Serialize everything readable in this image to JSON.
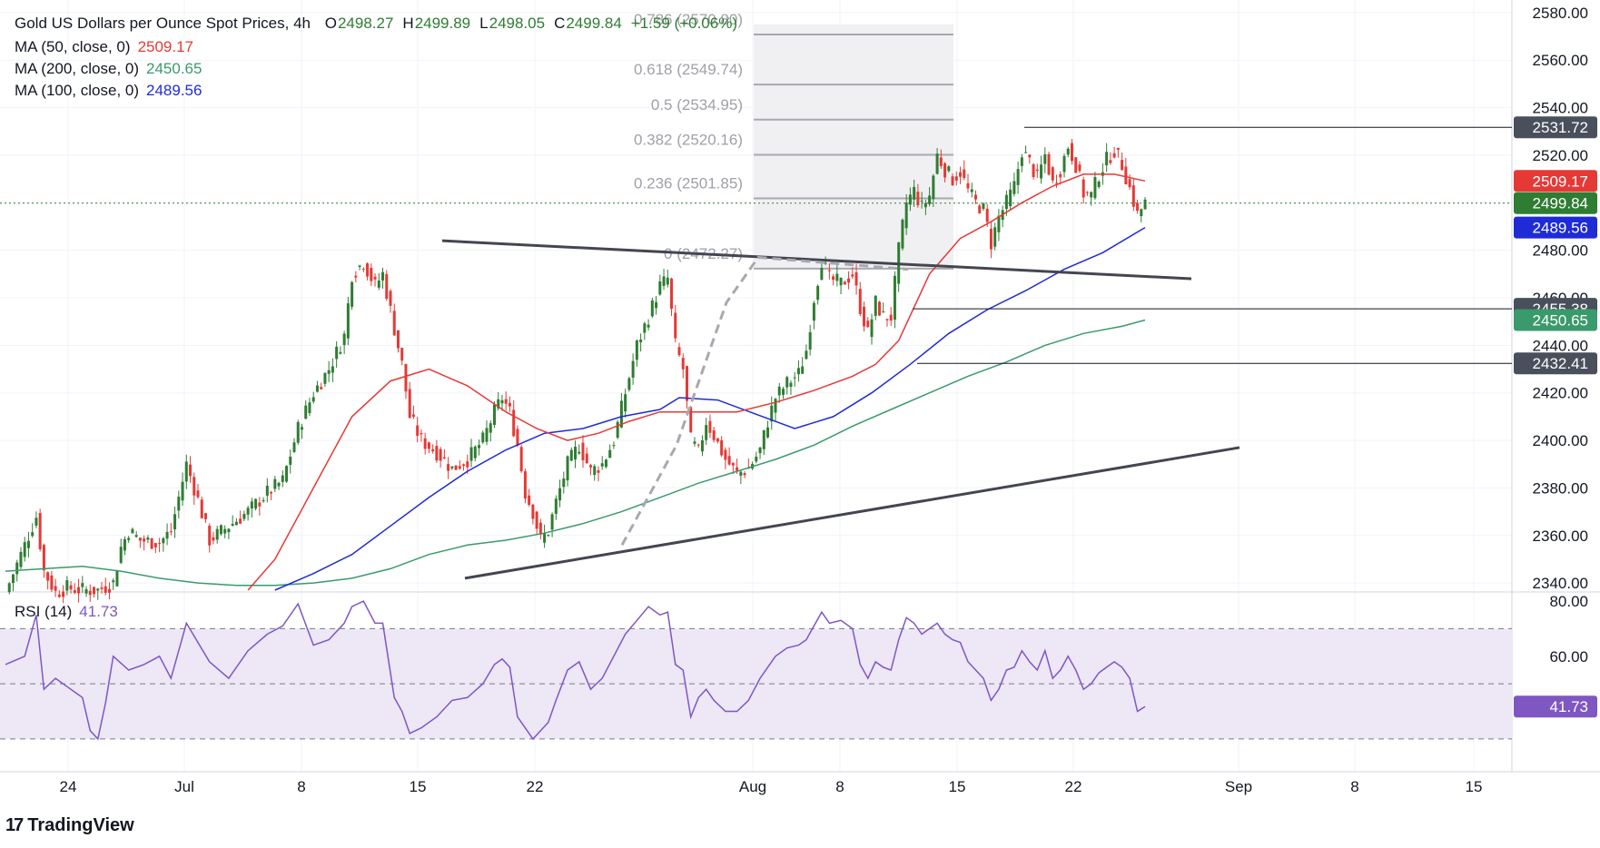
{
  "legend": {
    "symbol": "Gold US Dollars per Ounce Spot Prices, 4h",
    "open_label": "O",
    "open": "2498.27",
    "high_label": "H",
    "high": "2499.89",
    "low_label": "L",
    "low": "2498.05",
    "close_label": "C",
    "close": "2499.84",
    "change": "+1.59 (+0.06%)",
    "ma50_label": "MA (50, close, 0)",
    "ma50_value": "2509.17",
    "ma200_label": "MA (200, close, 0)",
    "ma200_value": "2450.65",
    "ma100_label": "MA (100, close, 0)",
    "ma100_value": "2489.56",
    "rsi_label": "RSI (14)",
    "rsi_value": "41.73"
  },
  "brand": {
    "logo": "17",
    "name": "TradingView"
  },
  "colors": {
    "up": "#2e7d32",
    "down": "#e53935",
    "ma50": "#e53935",
    "ma100": "#1e2bd6",
    "ma200": "#3a9a6b",
    "rsi": "#7e57c2",
    "rsi_band": "#ede7f6"
  },
  "chart_data": {
    "type": "candlestick",
    "title": "Gold US Dollars per Ounce Spot Prices, 4h",
    "y_ticks": [
      "2340.00",
      "2360.00",
      "2380.00",
      "2400.00",
      "2420.00",
      "2440.00",
      "2460.00",
      "2480.00",
      "2500.00",
      "2520.00",
      "2540.00",
      "2560.00",
      "2580.00"
    ],
    "x_ticks": [
      "24",
      "Jul",
      "8",
      "15",
      "22",
      "Aug",
      "8",
      "15",
      "22",
      "Sep",
      "8",
      "15"
    ],
    "ylim": [
      2337,
      2583
    ],
    "price_tags": [
      {
        "value": 2531.72,
        "label": "2531.72",
        "style": "gray"
      },
      {
        "value": 2509.17,
        "label": "2509.17",
        "style": "ma50"
      },
      {
        "value": 2499.84,
        "label": "2499.84",
        "style": "up"
      },
      {
        "value": 2489.56,
        "label": "2489.56",
        "style": "ma100"
      },
      {
        "value": 2455.38,
        "label": "2455.38",
        "style": "gray"
      },
      {
        "value": 2450.65,
        "label": "2450.65",
        "style": "ma200"
      },
      {
        "value": 2432.41,
        "label": "2432.41",
        "style": "gray"
      }
    ],
    "fibonacci": [
      {
        "label": "0.786 (2570.80)",
        "value": 2570.8
      },
      {
        "label": "0.618 (2549.74)",
        "value": 2549.74
      },
      {
        "label": "0.5 (2534.95)",
        "value": 2534.95
      },
      {
        "label": "0.382 (2520.16)",
        "value": 2520.16
      },
      {
        "label": "0.236 (2501.85)",
        "value": 2501.85
      },
      {
        "label": "0 (2472.27)",
        "value": 2472.27
      }
    ],
    "close_path": [
      [
        0,
        2336
      ],
      [
        5,
        2356
      ],
      [
        8,
        2368
      ],
      [
        10,
        2345
      ],
      [
        13,
        2336
      ],
      [
        16,
        2338
      ],
      [
        20,
        2337
      ],
      [
        24,
        2337
      ],
      [
        28,
        2340
      ],
      [
        30,
        2355
      ],
      [
        32,
        2362
      ],
      [
        35,
        2358
      ],
      [
        40,
        2357
      ],
      [
        43,
        2362
      ],
      [
        47,
        2390
      ],
      [
        50,
        2375
      ],
      [
        53,
        2358
      ],
      [
        58,
        2364
      ],
      [
        63,
        2370
      ],
      [
        68,
        2378
      ],
      [
        72,
        2383
      ],
      [
        76,
        2405
      ],
      [
        80,
        2420
      ],
      [
        84,
        2430
      ],
      [
        88,
        2444
      ],
      [
        90,
        2470
      ],
      [
        93,
        2475
      ],
      [
        96,
        2465
      ],
      [
        98,
        2470
      ],
      [
        101,
        2447
      ],
      [
        103,
        2432
      ],
      [
        105,
        2410
      ],
      [
        108,
        2400
      ],
      [
        112,
        2395
      ],
      [
        116,
        2388
      ],
      [
        120,
        2392
      ],
      [
        124,
        2400
      ],
      [
        127,
        2412
      ],
      [
        129,
        2418
      ],
      [
        131,
        2412
      ],
      [
        133,
        2398
      ],
      [
        135,
        2378
      ],
      [
        137,
        2370
      ],
      [
        139,
        2358
      ],
      [
        141,
        2362
      ],
      [
        143,
        2374
      ],
      [
        146,
        2390
      ],
      [
        149,
        2398
      ],
      [
        152,
        2387
      ],
      [
        155,
        2390
      ],
      [
        158,
        2400
      ],
      [
        161,
        2420
      ],
      [
        164,
        2440
      ],
      [
        167,
        2452
      ],
      [
        170,
        2465
      ],
      [
        172,
        2468
      ],
      [
        174,
        2440
      ],
      [
        176,
        2430
      ],
      [
        178,
        2400
      ],
      [
        180,
        2395
      ],
      [
        182,
        2408
      ],
      [
        184,
        2402
      ],
      [
        187,
        2392
      ],
      [
        190,
        2386
      ],
      [
        193,
        2388
      ],
      [
        196,
        2396
      ],
      [
        198,
        2408
      ],
      [
        200,
        2418
      ],
      [
        203,
        2424
      ],
      [
        206,
        2428
      ],
      [
        208,
        2438
      ],
      [
        210,
        2460
      ],
      [
        212,
        2476
      ],
      [
        214,
        2468
      ],
      [
        217,
        2466
      ],
      [
        220,
        2470
      ],
      [
        222,
        2456
      ],
      [
        224,
        2445
      ],
      [
        226,
        2458
      ],
      [
        228,
        2452
      ],
      [
        230,
        2452
      ],
      [
        232,
        2480
      ],
      [
        234,
        2500
      ],
      [
        236,
        2505
      ],
      [
        238,
        2498
      ],
      [
        240,
        2503
      ],
      [
        242,
        2520
      ],
      [
        244,
        2514
      ],
      [
        246,
        2510
      ],
      [
        248,
        2513
      ],
      [
        250,
        2505
      ],
      [
        252,
        2500
      ],
      [
        254,
        2497
      ],
      [
        256,
        2483
      ],
      [
        258,
        2494
      ],
      [
        260,
        2500
      ],
      [
        262,
        2507
      ],
      [
        264,
        2522
      ],
      [
        266,
        2517
      ],
      [
        268,
        2510
      ],
      [
        270,
        2520
      ],
      [
        272,
        2508
      ],
      [
        274,
        2514
      ],
      [
        276,
        2524
      ],
      [
        278,
        2516
      ],
      [
        280,
        2504
      ],
      [
        282,
        2503
      ],
      [
        284,
        2512
      ],
      [
        286,
        2518
      ],
      [
        288,
        2522
      ],
      [
        290,
        2516
      ],
      [
        292,
        2506
      ],
      [
        294,
        2495
      ],
      [
        296,
        2499.84
      ]
    ],
    "ma50_path": [
      [
        63,
        2337
      ],
      [
        70,
        2350
      ],
      [
        80,
        2380
      ],
      [
        90,
        2410
      ],
      [
        100,
        2425
      ],
      [
        110,
        2430
      ],
      [
        120,
        2423
      ],
      [
        130,
        2412
      ],
      [
        138,
        2405
      ],
      [
        146,
        2400
      ],
      [
        154,
        2403
      ],
      [
        162,
        2408
      ],
      [
        170,
        2412
      ],
      [
        180,
        2412
      ],
      [
        190,
        2412
      ],
      [
        200,
        2416
      ],
      [
        210,
        2421
      ],
      [
        220,
        2427
      ],
      [
        226,
        2432
      ],
      [
        232,
        2442
      ],
      [
        240,
        2470
      ],
      [
        248,
        2485
      ],
      [
        256,
        2492
      ],
      [
        264,
        2500
      ],
      [
        272,
        2507
      ],
      [
        280,
        2512
      ],
      [
        288,
        2512
      ],
      [
        296,
        2509.17
      ]
    ],
    "ma100_path": [
      [
        70,
        2337
      ],
      [
        80,
        2344
      ],
      [
        90,
        2352
      ],
      [
        100,
        2364
      ],
      [
        110,
        2376
      ],
      [
        120,
        2387
      ],
      [
        130,
        2396
      ],
      [
        140,
        2403
      ],
      [
        150,
        2405
      ],
      [
        160,
        2410
      ],
      [
        170,
        2413
      ],
      [
        175,
        2418
      ],
      [
        185,
        2417
      ],
      [
        195,
        2411
      ],
      [
        205,
        2405
      ],
      [
        215,
        2410
      ],
      [
        225,
        2420
      ],
      [
        235,
        2432
      ],
      [
        245,
        2445
      ],
      [
        255,
        2455
      ],
      [
        265,
        2463
      ],
      [
        275,
        2472
      ],
      [
        285,
        2479
      ],
      [
        296,
        2489.56
      ]
    ],
    "ma200_path": [
      [
        0,
        2345
      ],
      [
        10,
        2346
      ],
      [
        20,
        2347
      ],
      [
        30,
        2345
      ],
      [
        40,
        2342
      ],
      [
        50,
        2340
      ],
      [
        60,
        2339
      ],
      [
        70,
        2339
      ],
      [
        80,
        2340
      ],
      [
        90,
        2342
      ],
      [
        100,
        2346
      ],
      [
        110,
        2352
      ],
      [
        120,
        2356
      ],
      [
        130,
        2358
      ],
      [
        140,
        2361
      ],
      [
        150,
        2365
      ],
      [
        160,
        2370
      ],
      [
        170,
        2376
      ],
      [
        180,
        2382
      ],
      [
        190,
        2387
      ],
      [
        200,
        2392
      ],
      [
        210,
        2398
      ],
      [
        220,
        2406
      ],
      [
        230,
        2413
      ],
      [
        240,
        2420
      ],
      [
        250,
        2427
      ],
      [
        260,
        2433
      ],
      [
        270,
        2440
      ],
      [
        280,
        2445
      ],
      [
        290,
        2448
      ],
      [
        296,
        2450.65
      ]
    ],
    "rsi": {
      "ylim": [
        26,
        82
      ],
      "y_ticks": [
        "60.00",
        "80.00"
      ],
      "levels": [
        70,
        50,
        30
      ],
      "path": [
        [
          0,
          57
        ],
        [
          5,
          60
        ],
        [
          8,
          75
        ],
        [
          10,
          48
        ],
        [
          13,
          52
        ],
        [
          16,
          49
        ],
        [
          20,
          45
        ],
        [
          22,
          33
        ],
        [
          24,
          30
        ],
        [
          26,
          43
        ],
        [
          28,
          60
        ],
        [
          32,
          55
        ],
        [
          36,
          57
        ],
        [
          40,
          60
        ],
        [
          43,
          52
        ],
        [
          47,
          72
        ],
        [
          50,
          65
        ],
        [
          53,
          58
        ],
        [
          58,
          52
        ],
        [
          63,
          62
        ],
        [
          68,
          68
        ],
        [
          72,
          71
        ],
        [
          76,
          79
        ],
        [
          80,
          64
        ],
        [
          84,
          66
        ],
        [
          88,
          72
        ],
        [
          90,
          78
        ],
        [
          93,
          80
        ],
        [
          96,
          72
        ],
        [
          98,
          72
        ],
        [
          101,
          45
        ],
        [
          103,
          40
        ],
        [
          105,
          32
        ],
        [
          108,
          34
        ],
        [
          112,
          38
        ],
        [
          116,
          44
        ],
        [
          120,
          45
        ],
        [
          124,
          50
        ],
        [
          127,
          57
        ],
        [
          129,
          59
        ],
        [
          131,
          56
        ],
        [
          133,
          38
        ],
        [
          135,
          34
        ],
        [
          137,
          30
        ],
        [
          139,
          33
        ],
        [
          141,
          36
        ],
        [
          143,
          44
        ],
        [
          146,
          55
        ],
        [
          149,
          58
        ],
        [
          152,
          48
        ],
        [
          155,
          52
        ],
        [
          158,
          60
        ],
        [
          161,
          68
        ],
        [
          164,
          73
        ],
        [
          167,
          78
        ],
        [
          170,
          75
        ],
        [
          172,
          76
        ],
        [
          174,
          57
        ],
        [
          176,
          55
        ],
        [
          178,
          38
        ],
        [
          180,
          45
        ],
        [
          182,
          48
        ],
        [
          184,
          44
        ],
        [
          187,
          40
        ],
        [
          190,
          40
        ],
        [
          193,
          44
        ],
        [
          196,
          52
        ],
        [
          198,
          56
        ],
        [
          200,
          60
        ],
        [
          203,
          63
        ],
        [
          206,
          64
        ],
        [
          208,
          66
        ],
        [
          210,
          71
        ],
        [
          212,
          76
        ],
        [
          214,
          72
        ],
        [
          217,
          73
        ],
        [
          220,
          70
        ],
        [
          222,
          57
        ],
        [
          224,
          52
        ],
        [
          226,
          58
        ],
        [
          228,
          56
        ],
        [
          230,
          55
        ],
        [
          232,
          66
        ],
        [
          234,
          74
        ],
        [
          236,
          72
        ],
        [
          238,
          68
        ],
        [
          240,
          70
        ],
        [
          242,
          72
        ],
        [
          244,
          68
        ],
        [
          246,
          66
        ],
        [
          248,
          65
        ],
        [
          250,
          58
        ],
        [
          252,
          55
        ],
        [
          254,
          52
        ],
        [
          256,
          44
        ],
        [
          258,
          48
        ],
        [
          260,
          55
        ],
        [
          262,
          56
        ],
        [
          264,
          62
        ],
        [
          266,
          58
        ],
        [
          268,
          55
        ],
        [
          270,
          62
        ],
        [
          272,
          52
        ],
        [
          274,
          55
        ],
        [
          276,
          60
        ],
        [
          278,
          55
        ],
        [
          280,
          48
        ],
        [
          282,
          50
        ],
        [
          284,
          54
        ],
        [
          286,
          56
        ],
        [
          288,
          58
        ],
        [
          290,
          56
        ],
        [
          292,
          52
        ],
        [
          294,
          40
        ],
        [
          296,
          41.73
        ]
      ]
    }
  }
}
